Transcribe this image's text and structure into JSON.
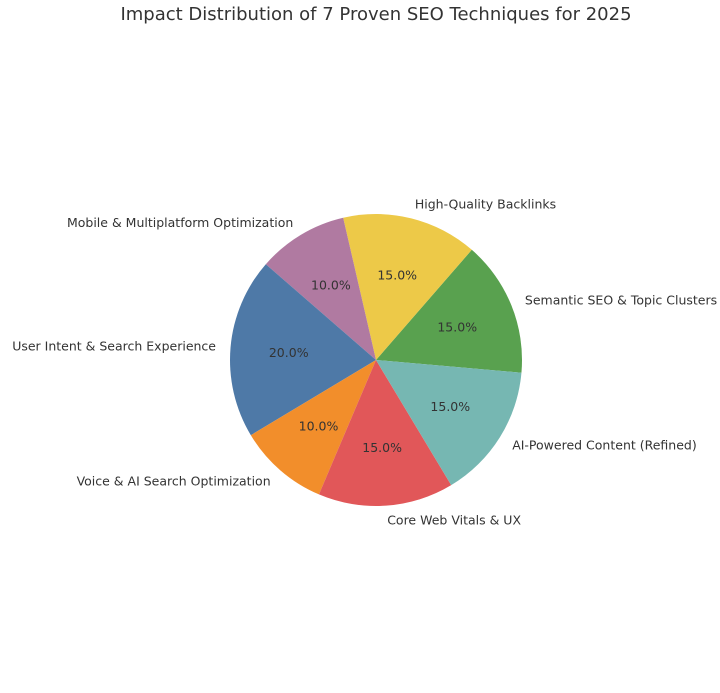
{
  "chart_data": {
    "type": "pie",
    "title": "Impact Distribution of 7 Proven SEO Techniques for 2025",
    "slices": [
      {
        "label": "Semantic SEO & Topic Clusters",
        "value": 15.0,
        "pct_label": "15.0%",
        "color": "#59a14f"
      },
      {
        "label": "High-Quality Backlinks",
        "value": 15.0,
        "pct_label": "15.0%",
        "color": "#edc948"
      },
      {
        "label": "Mobile & Multiplatform Optimization",
        "value": 10.0,
        "pct_label": "10.0%",
        "color": "#b07aa1"
      },
      {
        "label": "User Intent & Search Experience",
        "value": 20.0,
        "pct_label": "20.0%",
        "color": "#4e79a7"
      },
      {
        "label": "Voice & AI Search Optimization",
        "value": 10.0,
        "pct_label": "10.0%",
        "color": "#f28e2b"
      },
      {
        "label": "Core Web Vitals & UX",
        "value": 15.0,
        "pct_label": "15.0%",
        "color": "#e15759"
      },
      {
        "label": "AI-Powered Content (Refined)",
        "value": 15.0,
        "pct_label": "15.0%",
        "color": "#76b7b2"
      }
    ],
    "start_angle_deg": -5,
    "direction": "counterclockwise",
    "legend": "none"
  }
}
